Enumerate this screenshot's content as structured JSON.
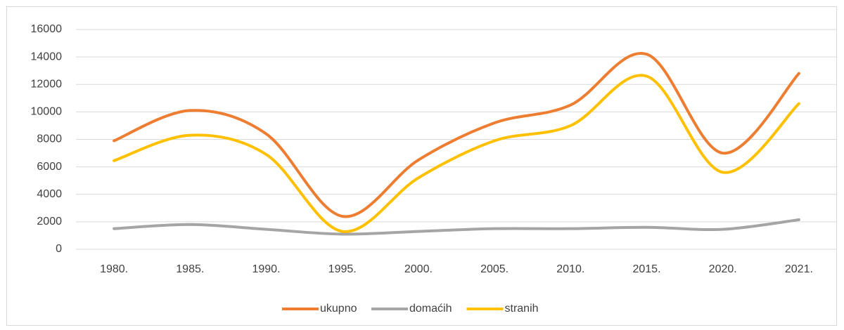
{
  "chart_data": {
    "type": "line",
    "categories": [
      "1980.",
      "1985.",
      "1990.",
      "1995.",
      "2000.",
      "2005.",
      "2010.",
      "2015.",
      "2020.",
      "2021."
    ],
    "series": [
      {
        "name": "ukupno",
        "color": "#ed7d31",
        "values": [
          7900,
          10100,
          8400,
          2400,
          6500,
          9200,
          10500,
          14200,
          7000,
          12800
        ]
      },
      {
        "name": "domaćih",
        "color": "#a5a5a5",
        "values": [
          1500,
          1800,
          1450,
          1100,
          1300,
          1500,
          1500,
          1600,
          1450,
          2150
        ]
      },
      {
        "name": "stranih",
        "color": "#ffc000",
        "values": [
          6450,
          8300,
          6900,
          1300,
          5200,
          7900,
          9000,
          12600,
          5600,
          10600
        ]
      }
    ],
    "ylim": [
      0,
      16000
    ],
    "yticks": [
      0,
      2000,
      4000,
      6000,
      8000,
      10000,
      12000,
      14000,
      16000
    ],
    "grid": true,
    "smooth": true,
    "legend": "bottom"
  }
}
